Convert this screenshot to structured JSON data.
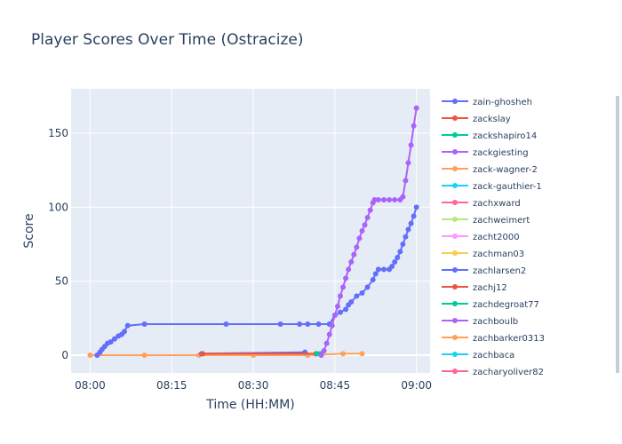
{
  "chart_data": {
    "type": "line",
    "title": "Player Scores Over Time (Ostracize)",
    "xlabel": "Time (HH:MM)",
    "ylabel": "Score",
    "x_ticks": [
      "08:00",
      "08:15",
      "08:30",
      "08:45",
      "09:00"
    ],
    "x_tick_minutes": [
      0,
      15,
      30,
      45,
      60
    ],
    "xlim_minutes": [
      -3.5,
      62.5
    ],
    "y_ticks": [
      0,
      50,
      100,
      150
    ],
    "ylim": [
      -12,
      180
    ],
    "grid": true,
    "legend_position": "right",
    "series": [
      {
        "name": "zain-ghosheh",
        "color": "#636efa",
        "x": [
          1.3,
          1.8,
          2.2,
          2.7,
          3.2,
          3.8,
          4.5,
          5.2,
          5.8,
          6.3,
          6.9,
          10.0,
          25.0,
          35.0,
          38.5,
          40.0,
          42.0,
          44.0,
          45.0,
          46.0,
          47.0,
          47.5,
          48.0,
          49.0,
          50.0,
          51.0,
          52.0,
          52.5,
          53.0,
          54.0,
          55.0,
          55.5,
          56.0,
          56.5,
          57.0,
          57.5,
          58.0,
          58.5,
          59.0,
          59.5,
          60.0
        ],
        "y": [
          0,
          2,
          4,
          6,
          8,
          9,
          11,
          13,
          14,
          16,
          20,
          21,
          21,
          21,
          21,
          21,
          21,
          21,
          27,
          29,
          31,
          34,
          36,
          40,
          42,
          46,
          51,
          55,
          58,
          58,
          58,
          60,
          63,
          66,
          70,
          75,
          80,
          85,
          89,
          94,
          100
        ]
      },
      {
        "name": "zackslay",
        "color": "#ef553b",
        "x": [
          20.7,
          41.5
        ],
        "y": [
          1,
          1
        ]
      },
      {
        "name": "zackshapiro14",
        "color": "#00cc96",
        "x": [
          41.7,
          42.3
        ],
        "y": [
          1,
          1
        ]
      },
      {
        "name": "zackgiesting",
        "color": "#ab63fa",
        "x": [
          42.5,
          43.0,
          43.5,
          44.0,
          44.5,
          45.0,
          45.5,
          46.0,
          46.5,
          47.0,
          47.5,
          48.0,
          48.5,
          49.0,
          49.5,
          50.0,
          50.5,
          51.0,
          51.5,
          52.0,
          52.3,
          53.0,
          54.0,
          55.0,
          56.0,
          57.0,
          57.5,
          58.0,
          58.5,
          59.0,
          59.5,
          60.0
        ],
        "y": [
          0,
          3,
          8,
          14,
          20,
          27,
          33,
          40,
          46,
          52,
          58,
          63,
          68,
          73,
          79,
          84,
          88,
          93,
          98,
          103,
          105,
          105,
          105,
          105,
          105,
          105,
          107,
          118,
          130,
          142,
          155,
          167
        ]
      },
      {
        "name": "zack-wagner-2",
        "color": "#ffa15a",
        "x": [
          0,
          10,
          20,
          30,
          40,
          46.5,
          50.0
        ],
        "y": [
          0,
          0,
          0,
          0,
          0,
          1,
          1
        ]
      },
      {
        "name": "zack-gauthier-1",
        "color": "#19d3f3",
        "x": [],
        "y": []
      },
      {
        "name": "zachxward",
        "color": "#ff6692",
        "x": [],
        "y": []
      },
      {
        "name": "zachweimert",
        "color": "#b6e880",
        "x": [],
        "y": []
      },
      {
        "name": "zacht2000",
        "color": "#ff97ff",
        "x": [],
        "y": []
      },
      {
        "name": "zachman03",
        "color": "#fecb52",
        "x": [],
        "y": []
      },
      {
        "name": "zachlarsen2",
        "color": "#636efa",
        "x": [
          20.5,
          39.5
        ],
        "y": [
          1,
          2
        ]
      },
      {
        "name": "zachj12",
        "color": "#ef553b",
        "x": [],
        "y": []
      },
      {
        "name": "zachdegroat77",
        "color": "#00cc96",
        "x": [],
        "y": []
      },
      {
        "name": "zachboulb",
        "color": "#ab63fa",
        "x": [],
        "y": []
      },
      {
        "name": "zachbarker0313",
        "color": "#ffa15a",
        "x": [],
        "y": []
      },
      {
        "name": "zachbaca",
        "color": "#19d3f3",
        "x": [],
        "y": []
      },
      {
        "name": "zacharyoliver82",
        "color": "#ff6692",
        "x": [],
        "y": []
      }
    ]
  }
}
